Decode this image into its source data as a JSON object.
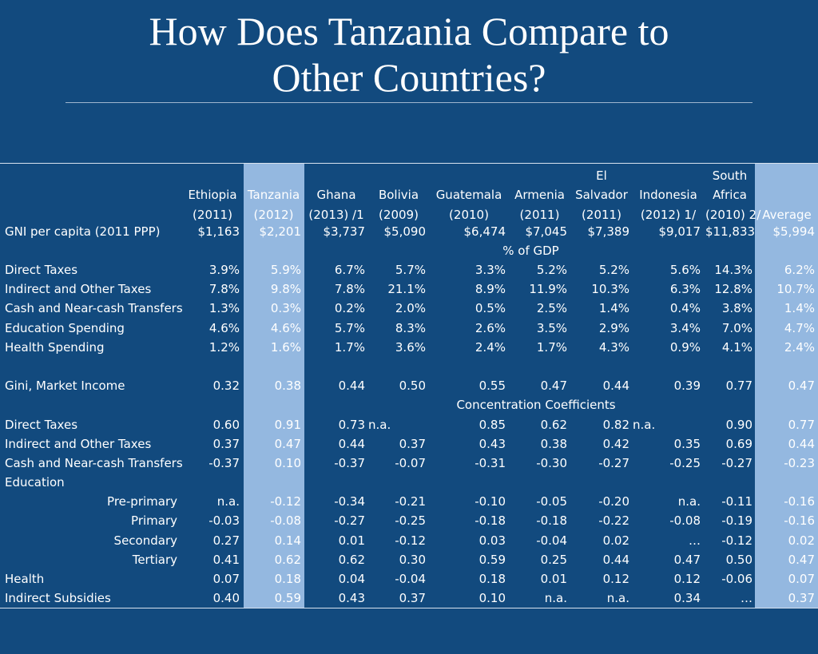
{
  "title_line1": "How Does Tanzania Compare to",
  "title_line2": "Other Countries?",
  "highlight_color": "#94b8e0",
  "background_color": "#124a7e",
  "headers": [
    [
      "",
      "",
      "",
      "",
      "",
      "",
      "El",
      "",
      "South",
      ""
    ],
    [
      "Ethiopia",
      "Tanzania",
      "Ghana",
      "Bolivia",
      "Guatemala",
      "Armenia",
      "Salvador",
      "Indonesia",
      "Africa",
      ""
    ],
    [
      "(2011)",
      "(2012)",
      "(2013) /1",
      "(2009)",
      "(2010)",
      "(2011)",
      "(2011)",
      "(2012) 1/",
      "(2010) 2/",
      "Average"
    ]
  ],
  "gni": {
    "label": "GNI per capita (2011 PPP)",
    "values": [
      "$1,163",
      "$2,201",
      "$3,737",
      "$5,090",
      "$6,474",
      "$7,045",
      "$7,389",
      "$9,017",
      "$11,833",
      "$5,994"
    ]
  },
  "section_gdp": "% of GDP",
  "gdp_rows": [
    {
      "label": "Direct Taxes",
      "values": [
        "3.9%",
        "5.9%",
        "6.7%",
        "5.7%",
        "3.3%",
        "5.2%",
        "5.2%",
        "5.6%",
        "14.3%",
        "6.2%"
      ]
    },
    {
      "label": "Indirect and Other Taxes",
      "values": [
        "7.8%",
        "9.8%",
        "7.8%",
        "21.1%",
        "8.9%",
        "11.9%",
        "10.3%",
        "6.3%",
        "12.8%",
        "10.7%"
      ]
    },
    {
      "label": "Cash and Near-cash Transfers",
      "values": [
        "1.3%",
        "0.3%",
        "0.2%",
        "2.0%",
        "0.5%",
        "2.5%",
        "1.4%",
        "0.4%",
        "3.8%",
        "1.4%"
      ]
    },
    {
      "label": "Education Spending",
      "values": [
        "4.6%",
        "4.6%",
        "5.7%",
        "8.3%",
        "2.6%",
        "3.5%",
        "2.9%",
        "3.4%",
        "7.0%",
        "4.7%"
      ]
    },
    {
      "label": "Health Spending",
      "values": [
        "1.2%",
        "1.6%",
        "1.7%",
        "3.6%",
        "2.4%",
        "1.7%",
        "4.3%",
        "0.9%",
        "4.1%",
        "2.4%"
      ]
    }
  ],
  "gini": {
    "label": "Gini, Market Income",
    "values": [
      "0.32",
      "0.38",
      "0.44",
      "0.50",
      "0.55",
      "0.47",
      "0.44",
      "0.39",
      "0.77",
      "0.47"
    ]
  },
  "section_cc": "Concentration Coefficients",
  "cc_direct": {
    "label": "Direct Taxes",
    "values": [
      "0.60",
      "0.91",
      "0.73",
      "n.a.",
      "0.85",
      "0.62",
      "0.82",
      "n.a.",
      "0.90",
      "0.77"
    ]
  },
  "cc_rows": [
    {
      "label": "Indirect and Other Taxes",
      "values": [
        "0.37",
        "0.47",
        "0.44",
        "0.37",
        "0.43",
        "0.38",
        "0.42",
        "0.35",
        "0.69",
        "0.44"
      ]
    },
    {
      "label": "Cash and Near-cash Transfers",
      "values": [
        "-0.37",
        "0.10",
        "-0.37",
        "-0.07",
        "-0.31",
        "-0.30",
        "-0.27",
        "-0.25",
        "-0.27",
        "-0.23"
      ]
    }
  ],
  "education_label": "Education",
  "edu_rows": [
    {
      "label": "Pre-primary",
      "values": [
        "n.a.",
        "-0.12",
        "-0.34",
        "-0.21",
        "-0.10",
        "-0.05",
        "-0.20",
        "n.a.",
        "-0.11",
        "-0.16"
      ]
    },
    {
      "label": "Primary",
      "values": [
        "-0.03",
        "-0.08",
        "-0.27",
        "-0.25",
        "-0.18",
        "-0.18",
        "-0.22",
        "-0.08",
        "-0.19",
        "-0.16"
      ]
    },
    {
      "label": "Secondary",
      "values": [
        "0.27",
        "0.14",
        "0.01",
        "-0.12",
        "0.03",
        "-0.04",
        "0.02",
        "…",
        "-0.12",
        "0.02"
      ]
    },
    {
      "label": "Tertiary",
      "values": [
        "0.41",
        "0.62",
        "0.62",
        "0.30",
        "0.59",
        "0.25",
        "0.44",
        "0.47",
        "0.50",
        "0.47"
      ]
    }
  ],
  "tail_rows": [
    {
      "label": "Health",
      "values": [
        "0.07",
        "0.18",
        "0.04",
        "-0.04",
        "0.18",
        "0.01",
        "0.12",
        "0.12",
        "-0.06",
        "0.07"
      ]
    },
    {
      "label": "Indirect Subsidies",
      "values": [
        "0.40",
        "0.59",
        "0.43",
        "0.37",
        "0.10",
        "n.a.",
        "n.a.",
        "0.34",
        "…",
        "0.37"
      ]
    }
  ]
}
